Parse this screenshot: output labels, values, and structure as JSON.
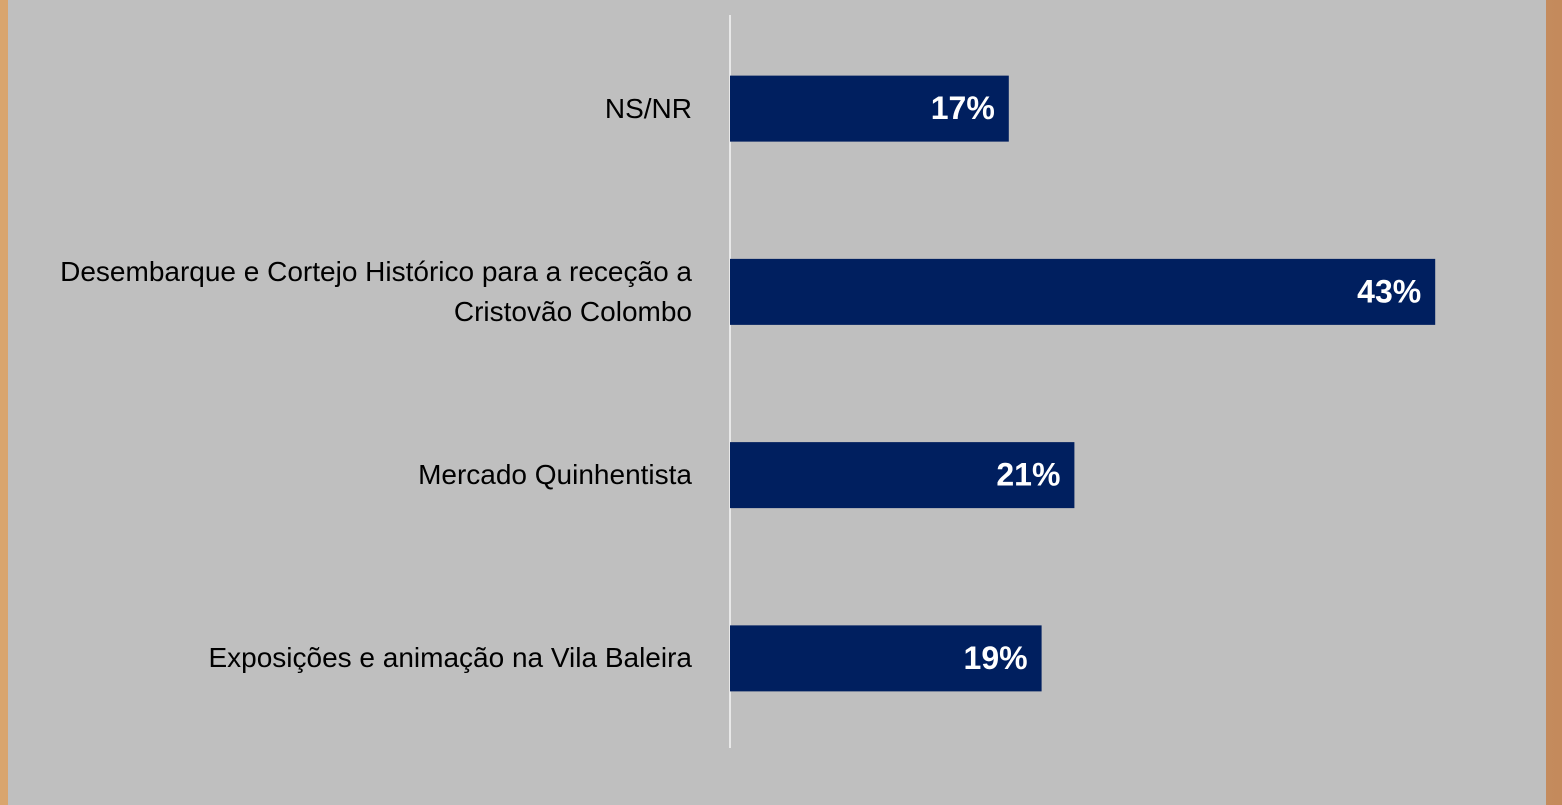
{
  "chart_data": {
    "type": "bar",
    "orientation": "horizontal",
    "categories": [
      "NS/NR",
      "Desembarque e Cortejo Histórico para a receção a Cristovão Colombo",
      "Mercado Quinhentista",
      "Exposições e animação na Vila Baleira"
    ],
    "values": [
      17,
      43,
      21,
      19
    ],
    "value_labels": [
      "17%",
      "43%",
      "21%",
      "19%"
    ],
    "color": "#001f5f",
    "xlim": [
      0,
      45
    ]
  }
}
